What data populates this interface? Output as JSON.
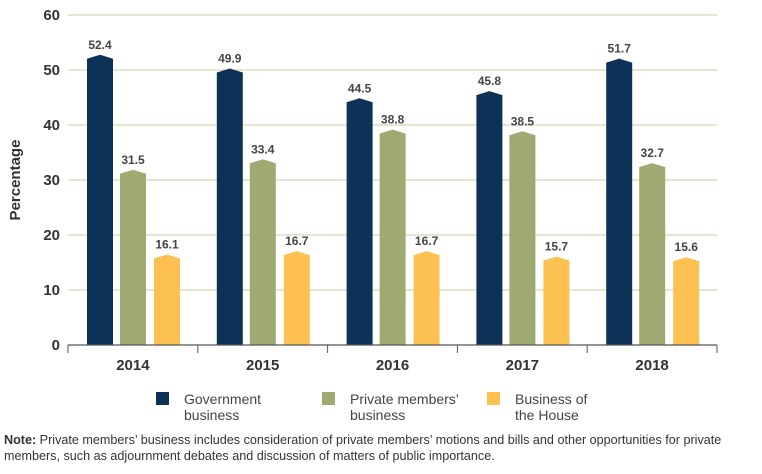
{
  "chart_data": {
    "type": "bar",
    "title": "",
    "xlabel": "",
    "ylabel": "Percentage",
    "ylim": [
      0,
      60
    ],
    "yticks": [
      0,
      10,
      20,
      30,
      40,
      50,
      60
    ],
    "grid": true,
    "legend_position": "bottom",
    "categories": [
      "2014",
      "2015",
      "2016",
      "2017",
      "2018"
    ],
    "series": [
      {
        "name": "Government business",
        "label_lines": [
          "Government",
          "business"
        ],
        "color": "#0d3257",
        "values": [
          52.4,
          49.9,
          44.5,
          45.8,
          51.7
        ]
      },
      {
        "name": "Private members' business",
        "label_lines": [
          "Private members’",
          "business"
        ],
        "color": "#9faa72",
        "values": [
          31.5,
          33.4,
          38.8,
          38.5,
          32.7
        ]
      },
      {
        "name": "Business of the House",
        "label_lines": [
          "Business of",
          "the House"
        ],
        "color": "#fdc151",
        "values": [
          16.1,
          16.7,
          16.7,
          15.7,
          15.6
        ]
      }
    ]
  },
  "note": {
    "label": "Note:",
    "text": " Private members’ business includes consideration of private members’ motions and bills and other opportunities for private members, such as adjournment debates and discussion of matters of public importance."
  }
}
